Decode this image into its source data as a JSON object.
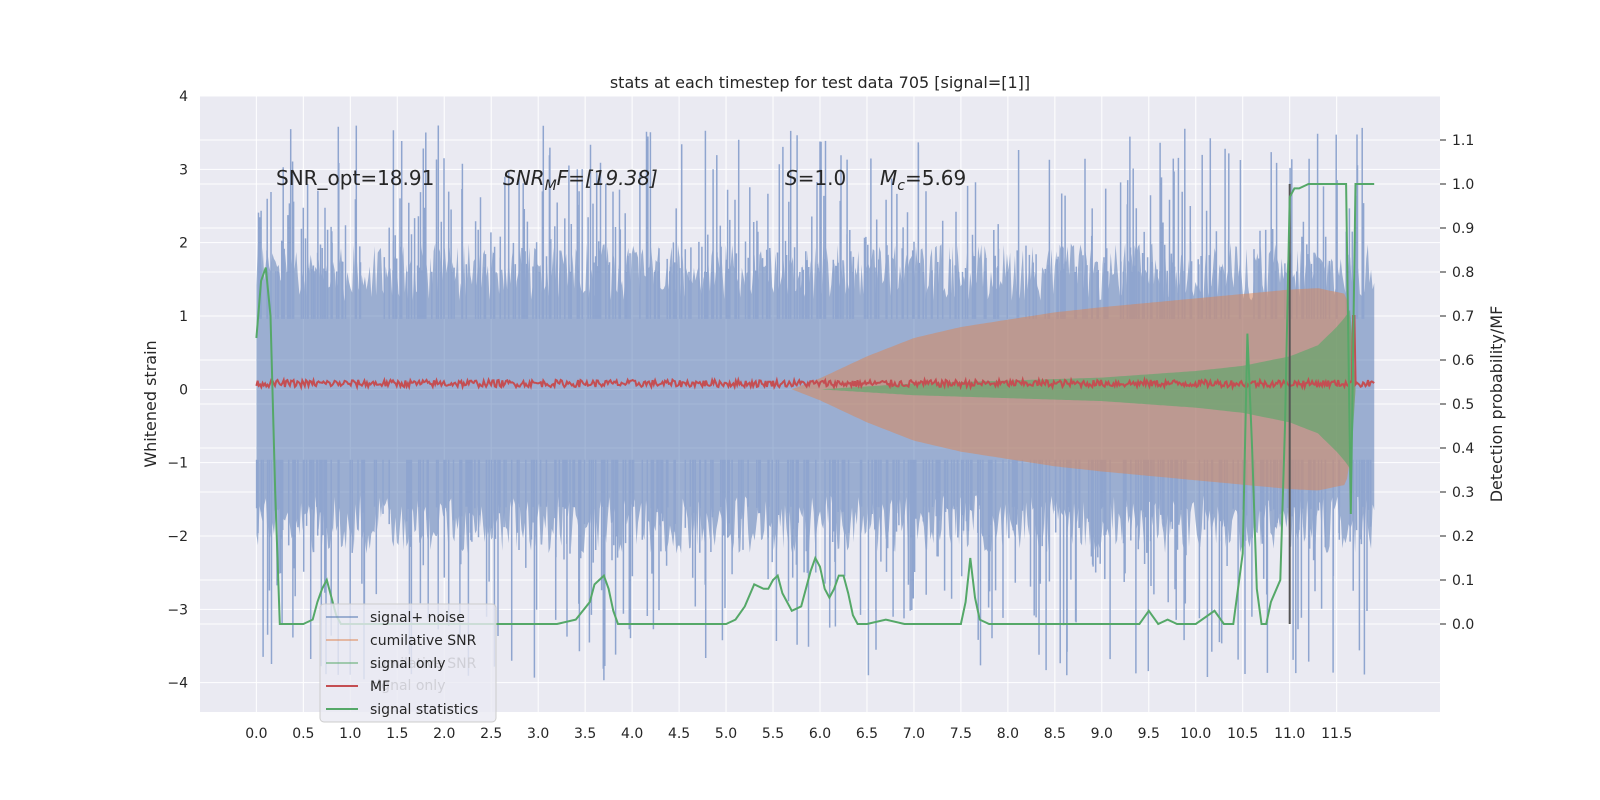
{
  "chart_data": {
    "type": "line",
    "title": "stats at each timestep for test data 705 [signal=[1]]",
    "xlabel": "",
    "ylabel": "Whitened strain",
    "ylabel_right": "Detection probability/MF",
    "xlim": [
      -0.6,
      12.6
    ],
    "ylim": [
      -4.4,
      4.0
    ],
    "ylim_right": [
      -0.2,
      1.2
    ],
    "x_ticks": [
      "0.0",
      "0.5",
      "1.0",
      "1.5",
      "2.0",
      "2.5",
      "3.0",
      "3.5",
      "4.0",
      "4.5",
      "5.0",
      "5.5",
      "6.0",
      "6.5",
      "7.0",
      "7.5",
      "8.0",
      "8.5",
      "9.0",
      "9.5",
      "10.0",
      "10.5",
      "11.0",
      "11.5"
    ],
    "y_ticks": [
      "4",
      "3",
      "2",
      "1",
      "0",
      "−1",
      "−2",
      "−3",
      "−4"
    ],
    "y_ticks_right": [
      "1.1",
      "1.0",
      "0.9",
      "0.8",
      "0.7",
      "0.6",
      "0.5",
      "0.4",
      "0.3",
      "0.2",
      "0.1",
      "0.0"
    ],
    "annotations": {
      "snr_opt": "SNR_opt=18.91",
      "snr_mf_main": "SNR",
      "snr_mf_sub": "M",
      "snr_mf_rest": "F=[19.38]",
      "s_main": "S",
      "s_rest": "=1.0",
      "mc_main": "M",
      "mc_sub": "c",
      "mc_rest": "=5.69"
    },
    "legend": [
      {
        "label": "signal+ noise",
        "color": "#4c72b0",
        "alpha": 0.5
      },
      {
        "label": "cumilative SNR",
        "color": "#dd8452",
        "alpha": 0.5
      },
      {
        "label": "signal only",
        "color": "#55a868",
        "alpha": 0.5
      },
      {
        "label": "MF",
        "color": "#c44e52",
        "alpha": 1
      },
      {
        "label": "signal statistics",
        "color": "#55a868",
        "alpha": 1
      }
    ],
    "ghost_legend": [
      "cumilative SNR",
      "signal only"
    ],
    "vline_x": 11.0,
    "noise_envelope": {
      "t": [
        0.0,
        11.9
      ],
      "amplitude": 1.6,
      "spike_max": 3.6,
      "spike_min": -4.0
    },
    "chirp_envelope": {
      "t": [
        5.7,
        6.0,
        6.5,
        7.0,
        7.5,
        8.0,
        8.5,
        9.0,
        9.5,
        10.0,
        10.5,
        11.0,
        11.3,
        11.6,
        11.65,
        11.7
      ],
      "amplitude": [
        0.0,
        0.15,
        0.45,
        0.7,
        0.85,
        0.95,
        1.05,
        1.12,
        1.18,
        1.24,
        1.3,
        1.36,
        1.38,
        1.3,
        0.9,
        0.0
      ]
    },
    "signal_only_envelope": {
      "t": [
        6.0,
        7.0,
        8.0,
        9.0,
        10.0,
        10.5,
        11.0,
        11.3,
        11.5,
        11.6,
        11.65,
        11.7
      ],
      "amplitude": [
        0.0,
        0.08,
        0.12,
        0.16,
        0.25,
        0.32,
        0.45,
        0.6,
        0.85,
        1.0,
        1.1,
        0.0
      ]
    },
    "mf_series": {
      "baseline": 0.08,
      "noise": 0.05,
      "spike_t": 11.68,
      "spike_value": 1.0
    },
    "signal_statistics": {
      "t": [
        0.0,
        0.05,
        0.1,
        0.15,
        0.2,
        0.25,
        0.3,
        0.4,
        0.5,
        0.6,
        0.65,
        0.7,
        0.75,
        0.8,
        0.85,
        0.9,
        1.0,
        1.5,
        2.0,
        2.5,
        3.0,
        3.2,
        3.4,
        3.55,
        3.6,
        3.7,
        3.75,
        3.8,
        3.85,
        3.9,
        4.0,
        4.5,
        5.0,
        5.1,
        5.2,
        5.3,
        5.4,
        5.45,
        5.5,
        5.55,
        5.6,
        5.7,
        5.8,
        5.9,
        5.95,
        6.0,
        6.05,
        6.1,
        6.15,
        6.2,
        6.25,
        6.3,
        6.35,
        6.4,
        6.45,
        6.5,
        6.7,
        6.9,
        7.0,
        7.2,
        7.5,
        7.55,
        7.6,
        7.65,
        7.7,
        7.8,
        8.0,
        8.5,
        9.0,
        9.4,
        9.5,
        9.6,
        9.7,
        9.8,
        10.0,
        10.2,
        10.3,
        10.35,
        10.4,
        10.5,
        10.55,
        10.6,
        10.65,
        10.7,
        10.75,
        10.8,
        10.9,
        10.95,
        11.0,
        11.05,
        11.1,
        11.2,
        11.3,
        11.4,
        11.5,
        11.6,
        11.65,
        11.7,
        11.8,
        11.9
      ],
      "values": [
        0.65,
        0.78,
        0.81,
        0.7,
        0.3,
        0.0,
        0.0,
        0.0,
        0.0,
        0.01,
        0.05,
        0.08,
        0.1,
        0.06,
        0.02,
        0.0,
        0.0,
        0.0,
        0.0,
        0.0,
        0.0,
        0.0,
        0.01,
        0.05,
        0.09,
        0.11,
        0.08,
        0.03,
        0.0,
        0.0,
        0.0,
        0.0,
        0.0,
        0.01,
        0.04,
        0.09,
        0.08,
        0.08,
        0.1,
        0.11,
        0.07,
        0.03,
        0.04,
        0.12,
        0.15,
        0.13,
        0.08,
        0.06,
        0.08,
        0.11,
        0.11,
        0.07,
        0.02,
        0.0,
        0.0,
        0.0,
        0.01,
        0.0,
        0.0,
        0.0,
        0.0,
        0.05,
        0.15,
        0.06,
        0.01,
        0.0,
        0.0,
        0.0,
        0.0,
        0.0,
        0.03,
        0.0,
        0.01,
        0.0,
        0.0,
        0.03,
        0.0,
        0.0,
        0.0,
        0.16,
        0.66,
        0.4,
        0.08,
        0.0,
        0.0,
        0.05,
        0.1,
        0.45,
        0.97,
        0.99,
        0.99,
        1.0,
        1.0,
        1.0,
        1.0,
        1.0,
        0.25,
        1.0,
        1.0,
        1.0
      ]
    }
  }
}
